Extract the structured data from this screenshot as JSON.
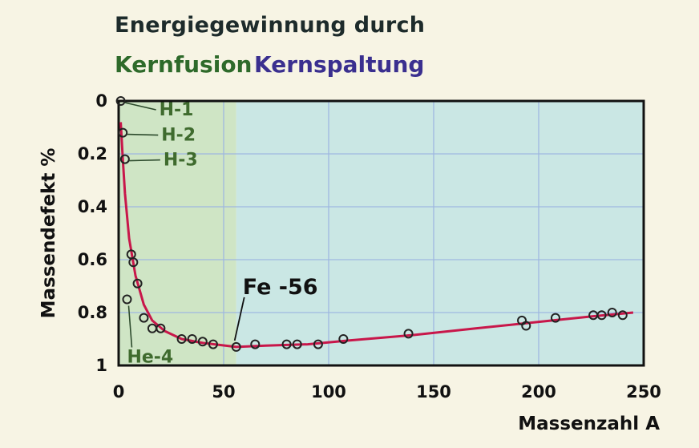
{
  "header": {
    "title": "Energiegewinnung durch",
    "fusion_label": "Kernfusion",
    "fission_label": "Kernspaltung"
  },
  "colors": {
    "fusion_region": "#cfe5c5",
    "fission_region": "#cae7e4",
    "curve": "#c8174a",
    "grid": "#9fb8e0",
    "fusion_text": "#2e6a2a",
    "fission_text": "#3a2f8f"
  },
  "chart_data": {
    "type": "scatter",
    "xlabel": "Massenzahl A",
    "ylabel": "Massendefekt %",
    "xlim": [
      0,
      250
    ],
    "ylim": [
      0,
      1
    ],
    "y_inverted": true,
    "fusion_region_x": [
      0,
      56
    ],
    "x_ticks": [
      "0",
      "50",
      "100",
      "150",
      "200",
      "250"
    ],
    "y_ticks": [
      "0",
      "0.2",
      "0.4",
      "0.6",
      "0.8",
      "1"
    ],
    "points": [
      {
        "x": 1,
        "y": 0.0
      },
      {
        "x": 2,
        "y": 0.12
      },
      {
        "x": 3,
        "y": 0.22
      },
      {
        "x": 4,
        "y": 0.75
      },
      {
        "x": 6,
        "y": 0.58
      },
      {
        "x": 7,
        "y": 0.61
      },
      {
        "x": 9,
        "y": 0.69
      },
      {
        "x": 12,
        "y": 0.82
      },
      {
        "x": 16,
        "y": 0.86
      },
      {
        "x": 20,
        "y": 0.86
      },
      {
        "x": 30,
        "y": 0.9
      },
      {
        "x": 35,
        "y": 0.9
      },
      {
        "x": 40,
        "y": 0.91
      },
      {
        "x": 45,
        "y": 0.92
      },
      {
        "x": 56,
        "y": 0.93
      },
      {
        "x": 65,
        "y": 0.92
      },
      {
        "x": 80,
        "y": 0.92
      },
      {
        "x": 85,
        "y": 0.92
      },
      {
        "x": 95,
        "y": 0.92
      },
      {
        "x": 107,
        "y": 0.9
      },
      {
        "x": 138,
        "y": 0.88
      },
      {
        "x": 192,
        "y": 0.83
      },
      {
        "x": 194,
        "y": 0.85
      },
      {
        "x": 208,
        "y": 0.82
      },
      {
        "x": 226,
        "y": 0.81
      },
      {
        "x": 230,
        "y": 0.81
      },
      {
        "x": 235,
        "y": 0.8
      },
      {
        "x": 240,
        "y": 0.81
      }
    ],
    "curve": [
      {
        "x": 1,
        "y": 0.08
      },
      {
        "x": 2,
        "y": 0.22
      },
      {
        "x": 3,
        "y": 0.35
      },
      {
        "x": 5,
        "y": 0.52
      },
      {
        "x": 8,
        "y": 0.66
      },
      {
        "x": 12,
        "y": 0.77
      },
      {
        "x": 16,
        "y": 0.83
      },
      {
        "x": 22,
        "y": 0.87
      },
      {
        "x": 30,
        "y": 0.9
      },
      {
        "x": 40,
        "y": 0.915
      },
      {
        "x": 56,
        "y": 0.93
      },
      {
        "x": 70,
        "y": 0.925
      },
      {
        "x": 90,
        "y": 0.92
      },
      {
        "x": 110,
        "y": 0.905
      },
      {
        "x": 140,
        "y": 0.885
      },
      {
        "x": 170,
        "y": 0.86
      },
      {
        "x": 200,
        "y": 0.835
      },
      {
        "x": 225,
        "y": 0.815
      },
      {
        "x": 245,
        "y": 0.8
      }
    ],
    "annotations": [
      {
        "text": "H-1",
        "x": 1,
        "y": 0.0,
        "color": "green"
      },
      {
        "text": "H-2",
        "x": 2,
        "y": 0.12,
        "color": "green"
      },
      {
        "text": "H-3",
        "x": 3,
        "y": 0.22,
        "color": "green"
      },
      {
        "text": "He-4",
        "x": 4,
        "y": 0.75,
        "color": "green"
      },
      {
        "text": "Fe -56",
        "x": 56,
        "y": 0.93,
        "color": "dark"
      }
    ]
  }
}
